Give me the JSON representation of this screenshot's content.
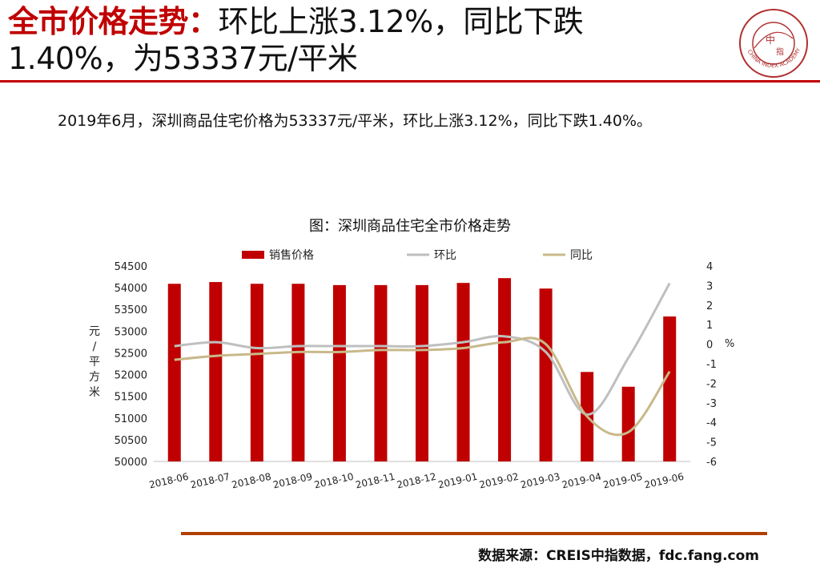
{
  "header": {
    "title_highlight": "全市价格走势：",
    "title_rest": "环比上涨3.12%，同比下跌",
    "title_line2": "1.40%，为53337元/平米"
  },
  "summary": "2019年6月，深圳商品住宅价格为53337元/平米，环比上涨3.12%，同比下跌1.40%。",
  "footer": {
    "source": "数据来源：CREIS中指数据，fdc.fang.com"
  },
  "logo": {
    "center_text": "中",
    "sub_text": "指",
    "ring_text": "CHINA INDEX ACADEMY"
  },
  "colors": {
    "accent": "#c00000",
    "bar": "#c00000",
    "mom_line": "#bfbfbf",
    "yoy_line": "#c8b98a",
    "footer_rule": "#b04000"
  },
  "chart_data": {
    "type": "bar",
    "title": "图：深圳商品住宅全市价格走势",
    "categories": [
      "2018-06",
      "2018-07",
      "2018-08",
      "2018-09",
      "2018-10",
      "2018-11",
      "2018-12",
      "2019-01",
      "2019-02",
      "2019-03",
      "2019-04",
      "2019-05",
      "2019-06"
    ],
    "ylabel": "元/平方米",
    "y2label": "%",
    "ylim": [
      50000,
      54500
    ],
    "y2lim": [
      -6,
      4
    ],
    "yticks": [
      "54500",
      "54000",
      "53500",
      "53000",
      "52500",
      "52000",
      "51500",
      "51000",
      "50500",
      "50000"
    ],
    "y2ticks": [
      "4",
      "3",
      "2",
      "1",
      "0",
      "-1",
      "-2",
      "-3",
      "-4",
      "-5",
      "-6"
    ],
    "legend_position": "top",
    "grid": false,
    "series": [
      {
        "name": "销售价格",
        "type": "bar",
        "axis": "left",
        "values": [
          54090,
          54130,
          54090,
          54090,
          54060,
          54060,
          54060,
          54110,
          54220,
          53980,
          52060,
          51720,
          53337
        ]
      },
      {
        "name": "环比",
        "type": "line",
        "axis": "right",
        "values": [
          -0.1,
          0.1,
          -0.2,
          -0.1,
          -0.1,
          -0.1,
          -0.1,
          0.1,
          0.4,
          -0.4,
          -3.6,
          -0.7,
          3.12
        ]
      },
      {
        "name": "同比",
        "type": "line",
        "axis": "right",
        "values": [
          -0.8,
          -0.6,
          -0.5,
          -0.4,
          -0.4,
          -0.3,
          -0.3,
          -0.2,
          0.1,
          0.0,
          -3.7,
          -4.5,
          -1.4
        ]
      }
    ]
  }
}
